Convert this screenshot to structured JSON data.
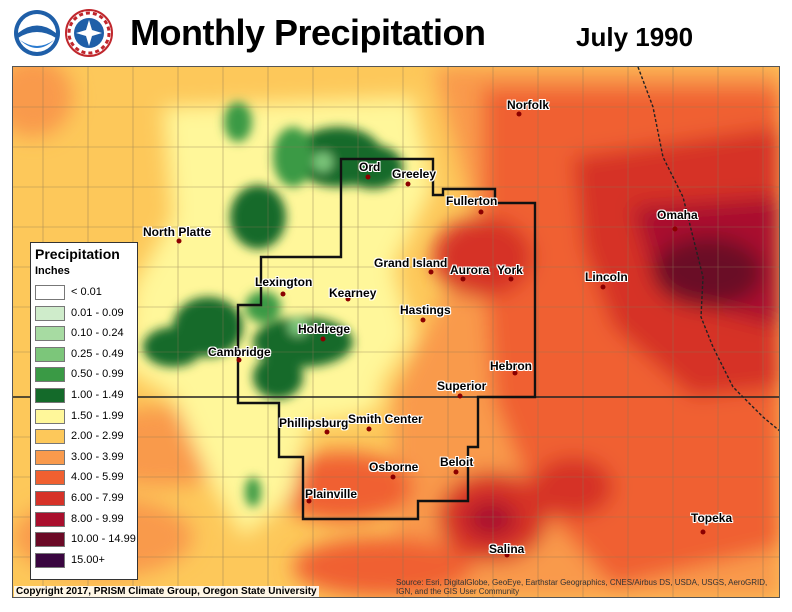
{
  "header": {
    "title": "Monthly Precipitation",
    "date": "July 1990"
  },
  "legend": {
    "title": "Precipitation",
    "unit": "Inches",
    "classes": [
      {
        "label": "< 0.01",
        "color": "#ffffff"
      },
      {
        "label": "0.01 - 0.09",
        "color": "#cfeccb"
      },
      {
        "label": "0.10 - 0.24",
        "color": "#a7dba2"
      },
      {
        "label": "0.25 - 0.49",
        "color": "#7cc67a"
      },
      {
        "label": "0.50 - 0.99",
        "color": "#3a9a45"
      },
      {
        "label": "1.00 - 1.49",
        "color": "#146a2a"
      },
      {
        "label": "1.50 - 1.99",
        "color": "#fff79a"
      },
      {
        "label": "2.00 - 2.99",
        "color": "#fdc85a"
      },
      {
        "label": "3.00 - 3.99",
        "color": "#f99a4c"
      },
      {
        "label": "4.00 - 5.99",
        "color": "#f06030"
      },
      {
        "label": "6.00 - 7.99",
        "color": "#d63228"
      },
      {
        "label": "8.00 - 9.99",
        "color": "#a90f2d"
      },
      {
        "label": "10.00 - 14.99",
        "color": "#6b0a26"
      },
      {
        "label": "15.00+",
        "color": "#3a0640"
      }
    ]
  },
  "cities": [
    {
      "name": "Norfolk"
    },
    {
      "name": "Ord"
    },
    {
      "name": "Greeley"
    },
    {
      "name": "Fullerton"
    },
    {
      "name": "Omaha"
    },
    {
      "name": "North Platte"
    },
    {
      "name": "Grand Island"
    },
    {
      "name": "Aurora"
    },
    {
      "name": "York"
    },
    {
      "name": "Lincoln"
    },
    {
      "name": "Lexington"
    },
    {
      "name": "Kearney"
    },
    {
      "name": "Hastings"
    },
    {
      "name": "Holdrege"
    },
    {
      "name": "Cambridge"
    },
    {
      "name": "Hebron"
    },
    {
      "name": "Superior"
    },
    {
      "name": "Phillipsburg"
    },
    {
      "name": "Smith Center"
    },
    {
      "name": "Osborne"
    },
    {
      "name": "Beloit"
    },
    {
      "name": "Plainville"
    },
    {
      "name": "Topeka"
    },
    {
      "name": "Salina"
    }
  ],
  "footer": {
    "copyright": "Copyright 2017, PRISM Climate Group, Oregon State University",
    "source": "Source: Esri, DigitalGlobe, GeoEye, Earthstar Geographics, CNES/Airbus DS, USDA, USGS, AeroGRID, IGN, and the GIS User Community"
  }
}
